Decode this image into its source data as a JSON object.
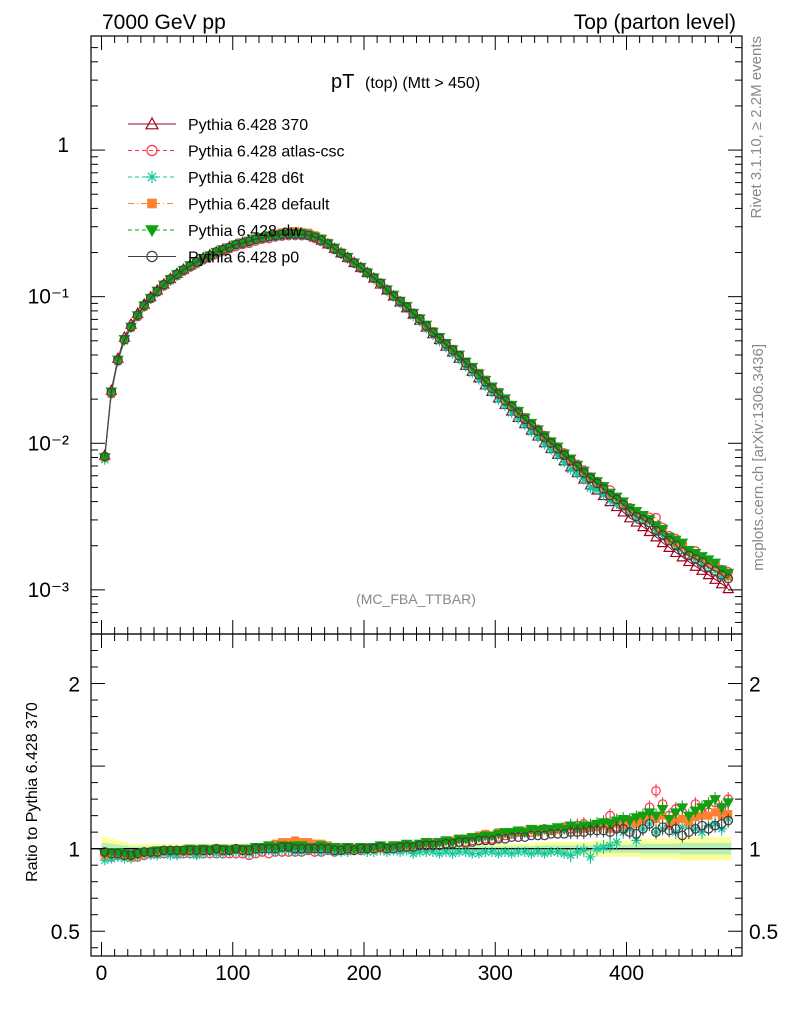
{
  "header": {
    "left": "7000 GeV pp",
    "right": "Top (parton level)"
  },
  "side_labels": {
    "rivet": "Rivet 3.1.10, ≥ 2.2M events",
    "mcplots": "mcplots.cern.ch [arXiv:1306.3436]"
  },
  "chart_data": [
    {
      "type": "line",
      "panel": "main",
      "title_main": "pT",
      "title_sub": "(top) (Mtt > 450)",
      "watermark": "(MC_FBA_TTBAR)",
      "xlim": [
        -8,
        488
      ],
      "ylim": [
        0.0005,
        6
      ],
      "yscale": "log",
      "ytick_labels": [
        "1",
        "10⁻¹",
        "10⁻²",
        "10⁻³"
      ],
      "x": [
        2.5,
        7.5,
        12.5,
        17.5,
        22.5,
        27.5,
        32.5,
        37.5,
        42.5,
        47.5,
        52.5,
        57.5,
        62.5,
        67.5,
        72.5,
        77.5,
        82.5,
        87.5,
        92.5,
        97.5,
        102.5,
        107.5,
        112.5,
        117.5,
        122.5,
        127.5,
        132.5,
        137.5,
        142.5,
        147.5,
        152.5,
        157.5,
        162.5,
        167.5,
        172.5,
        177.5,
        182.5,
        187.5,
        192.5,
        197.5,
        202.5,
        207.5,
        212.5,
        217.5,
        222.5,
        227.5,
        232.5,
        237.5,
        242.5,
        247.5,
        252.5,
        257.5,
        262.5,
        267.5,
        272.5,
        277.5,
        282.5,
        287.5,
        292.5,
        297.5,
        302.5,
        307.5,
        312.5,
        317.5,
        322.5,
        327.5,
        332.5,
        337.5,
        342.5,
        347.5,
        352.5,
        357.5,
        362.5,
        367.5,
        372.5,
        377.5,
        382.5,
        387.5,
        392.5,
        397.5,
        402.5,
        407.5,
        412.5,
        417.5,
        422.5,
        427.5,
        432.5,
        437.5,
        442.5,
        447.5,
        452.5,
        457.5,
        462.5,
        467.5,
        472.5,
        477.5
      ],
      "reference_values": [
        0.0083,
        0.023,
        0.038,
        0.053,
        0.065,
        0.077,
        0.089,
        0.1,
        0.111,
        0.122,
        0.133,
        0.144,
        0.154,
        0.164,
        0.174,
        0.184,
        0.193,
        0.202,
        0.211,
        0.219,
        0.227,
        0.234,
        0.241,
        0.247,
        0.252,
        0.257,
        0.261,
        0.264,
        0.266,
        0.267,
        0.266,
        0.263,
        0.255,
        0.243,
        0.229,
        0.214,
        0.199,
        0.185,
        0.171,
        0.158,
        0.146,
        0.134,
        0.122,
        0.111,
        0.101,
        0.092,
        0.084,
        0.076,
        0.069,
        0.062,
        0.056,
        0.051,
        0.046,
        0.042,
        0.038,
        0.034,
        0.031,
        0.028,
        0.025,
        0.0226,
        0.0204,
        0.0184,
        0.0166,
        0.015,
        0.0136,
        0.0123,
        0.0112,
        0.0101,
        0.0092,
        0.0084,
        0.0076,
        0.0069,
        0.0063,
        0.0057,
        0.0052,
        0.0048,
        0.0044,
        0.004,
        0.0037,
        0.0034,
        0.0031,
        0.0029,
        0.0027,
        0.0025,
        0.0023,
        0.0021,
        0.00195,
        0.0018,
        0.00168,
        0.00156,
        0.00145,
        0.00136,
        0.00127,
        0.00118,
        0.0011,
        0.00102
      ],
      "series": [
        {
          "name": "Pythia 6.428 370",
          "color": "#a0001c",
          "marker": "triangle-open",
          "dash": "solid"
        },
        {
          "name": "Pythia 6.428 atlas-csc",
          "color": "#ff3050",
          "marker": "circle-open",
          "dash": "dashed"
        },
        {
          "name": "Pythia 6.428 d6t",
          "color": "#10c8a0",
          "marker": "asterisk",
          "dash": "dashed"
        },
        {
          "name": "Pythia 6.428 default",
          "color": "#ff8030",
          "marker": "square",
          "dash": "dashdot"
        },
        {
          "name": "Pythia 6.428 dw",
          "color": "#10a010",
          "marker": "triangle-down",
          "dash": "dashed"
        },
        {
          "name": "Pythia 6.428 p0",
          "color": "#404040",
          "marker": "circle-open",
          "dash": "solid"
        }
      ]
    },
    {
      "type": "line",
      "panel": "ratio",
      "ylabel": "Ratio to Pythia 6.428 370",
      "xlim": [
        -8,
        488
      ],
      "ylim": [
        0.35,
        2.3
      ],
      "ytick_labels": [
        "2",
        "1",
        "0.5"
      ],
      "xtick_labels": [
        "0",
        "100",
        "200",
        "300",
        "400"
      ],
      "reference_line": 1,
      "band_halfwidth": [
        0.07,
        0.06,
        0.05,
        0.04,
        0.03,
        0.03,
        0.03,
        0.03,
        0.03,
        0.03,
        0.03,
        0.03,
        0.03,
        0.03,
        0.03,
        0.03,
        0.03,
        0.03,
        0.03,
        0.03,
        0.03,
        0.03,
        0.03,
        0.03,
        0.03,
        0.03,
        0.03,
        0.03,
        0.03,
        0.03,
        0.03,
        0.03,
        0.03,
        0.03,
        0.03,
        0.03,
        0.03,
        0.03,
        0.03,
        0.03,
        0.03,
        0.03,
        0.03,
        0.03,
        0.03,
        0.03,
        0.03,
        0.03,
        0.03,
        0.03,
        0.03,
        0.03,
        0.03,
        0.03,
        0.03,
        0.03,
        0.03,
        0.03,
        0.03,
        0.03,
        0.03,
        0.03,
        0.03,
        0.03,
        0.03,
        0.03,
        0.04,
        0.04,
        0.04,
        0.04,
        0.04,
        0.04,
        0.04,
        0.04,
        0.04,
        0.05,
        0.05,
        0.05,
        0.05,
        0.05,
        0.05,
        0.05,
        0.06,
        0.06,
        0.06,
        0.06,
        0.06,
        0.06,
        0.07,
        0.07,
        0.07,
        0.07,
        0.07,
        0.07,
        0.07,
        0.07
      ],
      "ratios": [
        [
          0.97,
          0.95,
          0.96,
          0.96,
          0.95,
          0.95,
          0.96,
          0.97,
          0.97,
          0.97,
          0.98,
          0.97,
          0.97,
          0.97,
          0.97,
          0.97,
          0.97,
          0.97,
          0.97,
          0.97,
          0.97,
          0.97,
          0.96,
          0.97,
          0.98,
          0.97,
          0.98,
          0.98,
          0.98,
          0.98,
          0.98,
          0.99,
          0.98,
          0.98,
          0.99,
          0.98,
          0.99,
          0.99,
          1.0,
          0.99,
          1.0,
          1.0,
          1.01,
          1.0,
          1.0,
          1.0,
          1.01,
          1.0,
          1.02,
          1.01,
          1.02,
          1.02,
          1.03,
          1.03,
          1.04,
          1.03,
          1.05,
          1.05,
          1.06,
          1.06,
          1.07,
          1.08,
          1.09,
          1.1,
          1.1,
          1.1,
          1.11,
          1.12,
          1.11,
          1.12,
          1.13,
          1.12,
          1.14,
          1.15,
          1.13,
          1.14,
          1.15,
          1.2,
          1.13,
          1.16,
          1.17,
          1.16,
          1.18,
          1.25,
          1.35,
          1.27,
          1.2,
          1.24,
          1.22,
          1.18,
          1.27,
          1.22,
          1.22,
          1.28,
          1.25,
          1.3
        ],
        [
          0.93,
          0.94,
          0.95,
          0.94,
          0.94,
          0.95,
          0.96,
          0.96,
          0.96,
          0.97,
          0.96,
          0.96,
          0.97,
          0.97,
          0.96,
          0.97,
          0.98,
          0.97,
          0.97,
          0.98,
          0.98,
          0.98,
          0.97,
          0.98,
          0.99,
          0.99,
          0.98,
          0.99,
          0.99,
          0.98,
          0.98,
          0.99,
          0.99,
          0.98,
          0.99,
          0.98,
          0.98,
          0.98,
          0.99,
          0.99,
          0.98,
          0.98,
          0.99,
          0.98,
          0.99,
          0.98,
          0.99,
          0.97,
          0.98,
          0.98,
          0.98,
          0.97,
          0.98,
          0.97,
          0.98,
          0.98,
          0.97,
          0.97,
          0.98,
          0.98,
          0.97,
          0.98,
          0.97,
          0.98,
          0.98,
          0.97,
          0.98,
          0.97,
          0.98,
          0.98,
          0.97,
          0.96,
          0.98,
          0.99,
          0.95,
          1.0,
          1.01,
          1.02,
          1.04,
          1.1,
          1.12,
          1.05,
          1.12,
          1.15,
          1.1,
          1.12,
          1.14,
          1.1,
          1.13,
          1.15,
          1.12,
          1.1,
          1.14,
          1.15,
          1.12,
          1.18
        ],
        [
          0.96,
          0.97,
          0.98,
          0.96,
          0.95,
          0.96,
          0.97,
          0.98,
          0.98,
          0.99,
          0.99,
          0.99,
          0.98,
          0.99,
          0.99,
          0.99,
          0.99,
          1.0,
          0.99,
          0.99,
          1.0,
          0.99,
          0.99,
          1.0,
          1.01,
          1.02,
          1.03,
          1.04,
          1.04,
          1.05,
          1.04,
          1.04,
          1.03,
          1.03,
          1.02,
          1.01,
          1.01,
          1.0,
          1.0,
          1.01,
          1.01,
          1.0,
          1.0,
          1.01,
          1.02,
          1.01,
          1.02,
          1.02,
          1.03,
          1.03,
          1.04,
          1.04,
          1.05,
          1.05,
          1.06,
          1.06,
          1.07,
          1.08,
          1.09,
          1.08,
          1.1,
          1.09,
          1.1,
          1.1,
          1.11,
          1.11,
          1.1,
          1.12,
          1.11,
          1.12,
          1.13,
          1.13,
          1.12,
          1.12,
          1.13,
          1.13,
          1.14,
          1.12,
          1.15,
          1.14,
          1.16,
          1.15,
          1.18,
          1.2,
          1.18,
          1.2,
          1.14,
          1.17,
          1.18,
          1.16,
          1.19,
          1.2,
          1.2,
          1.22,
          1.2,
          1.21
        ],
        [
          0.97,
          0.98,
          0.98,
          0.97,
          0.96,
          0.97,
          0.98,
          0.98,
          0.99,
          0.99,
          0.99,
          0.99,
          0.99,
          1.0,
          0.99,
          1.0,
          0.99,
          1.0,
          1.0,
          0.99,
          1.0,
          1.0,
          1.0,
          1.01,
          1.01,
          1.02,
          1.01,
          1.02,
          1.01,
          1.02,
          1.02,
          1.01,
          1.01,
          1.02,
          1.01,
          1.01,
          1.0,
          1.01,
          1.0,
          1.01,
          1.0,
          1.01,
          1.02,
          1.01,
          1.02,
          1.02,
          1.03,
          1.02,
          1.03,
          1.04,
          1.03,
          1.04,
          1.05,
          1.04,
          1.06,
          1.06,
          1.07,
          1.07,
          1.08,
          1.08,
          1.09,
          1.1,
          1.1,
          1.11,
          1.1,
          1.12,
          1.11,
          1.12,
          1.12,
          1.13,
          1.12,
          1.14,
          1.13,
          1.14,
          1.14,
          1.15,
          1.16,
          1.15,
          1.17,
          1.18,
          1.17,
          1.19,
          1.2,
          1.22,
          1.2,
          1.24,
          1.18,
          1.22,
          1.25,
          1.2,
          1.23,
          1.25,
          1.27,
          1.3,
          1.25,
          1.28
        ],
        [
          0.98,
          0.97,
          0.97,
          0.96,
          0.96,
          0.97,
          0.98,
          0.98,
          0.98,
          0.99,
          0.99,
          0.99,
          0.99,
          0.99,
          0.99,
          0.99,
          0.99,
          1.0,
          0.99,
          0.99,
          1.0,
          0.99,
          0.99,
          1.0,
          1.0,
          1.0,
          1.0,
          1.01,
          1.01,
          1.0,
          1.0,
          1.0,
          1.0,
          1.0,
          1.0,
          0.99,
          0.99,
          1.0,
          0.99,
          1.0,
          1.0,
          1.0,
          1.01,
          1.0,
          1.0,
          1.01,
          1.01,
          1.01,
          1.02,
          1.02,
          1.02,
          1.02,
          1.03,
          1.03,
          1.04,
          1.04,
          1.04,
          1.05,
          1.05,
          1.05,
          1.06,
          1.06,
          1.07,
          1.07,
          1.07,
          1.08,
          1.08,
          1.08,
          1.09,
          1.09,
          1.09,
          1.1,
          1.1,
          1.1,
          1.11,
          1.11,
          1.11,
          1.1,
          1.12,
          1.12,
          1.1,
          1.09,
          1.12,
          1.15,
          1.1,
          1.13,
          1.11,
          1.12,
          1.08,
          1.1,
          1.12,
          1.14,
          1.12,
          1.14,
          1.15,
          1.17
        ]
      ]
    }
  ]
}
